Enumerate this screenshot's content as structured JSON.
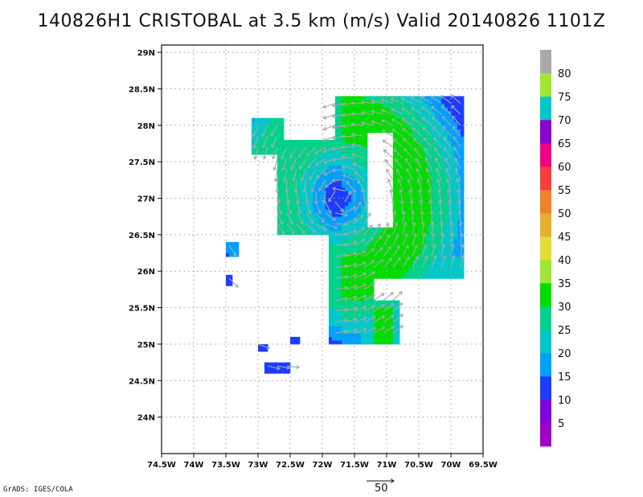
{
  "title": "140826H1 CRISTOBAL at 3.5 km (m/s) Valid 20140826 1101Z",
  "credit": "GrADS: IGES/COLA",
  "reference_vector": {
    "label": "50",
    "value": 50
  },
  "chart_data": {
    "type": "heatmap",
    "title": "140826H1 CRISTOBAL at 3.5 km (m/s) Valid 20140826 1101Z",
    "xlabel": "",
    "ylabel": "",
    "xlim": [
      -74.5,
      -69.5
    ],
    "ylim": [
      23.5,
      29.1
    ],
    "grid": true,
    "x_ticks": [
      {
        "value": -74.5,
        "label": "74.5W"
      },
      {
        "value": -74.0,
        "label": "74W"
      },
      {
        "value": -73.5,
        "label": "73.5W"
      },
      {
        "value": -73.0,
        "label": "73W"
      },
      {
        "value": -72.5,
        "label": "72.5W"
      },
      {
        "value": -72.0,
        "label": "72W"
      },
      {
        "value": -71.5,
        "label": "71.5W"
      },
      {
        "value": -71.0,
        "label": "71W"
      },
      {
        "value": -70.5,
        "label": "70.5W"
      },
      {
        "value": -70.0,
        "label": "70W"
      },
      {
        "value": -69.5,
        "label": "69.5W"
      }
    ],
    "y_ticks": [
      {
        "value": 24.0,
        "label": "24N"
      },
      {
        "value": 24.5,
        "label": "24.5N"
      },
      {
        "value": 25.0,
        "label": "25N"
      },
      {
        "value": 25.5,
        "label": "25.5N"
      },
      {
        "value": 26.0,
        "label": "26N"
      },
      {
        "value": 26.5,
        "label": "26.5N"
      },
      {
        "value": 27.0,
        "label": "27N"
      },
      {
        "value": 27.5,
        "label": "27.5N"
      },
      {
        "value": 28.0,
        "label": "28N"
      },
      {
        "value": 28.5,
        "label": "28.5N"
      },
      {
        "value": 29.0,
        "label": "29N"
      }
    ],
    "colorbar": {
      "labels": [
        "5",
        "10",
        "15",
        "20",
        "25",
        "30",
        "35",
        "40",
        "45",
        "50",
        "55",
        "60",
        "65",
        "70",
        "75",
        "80"
      ],
      "colors": [
        "#a000c8",
        "#8200dc",
        "#1e3cff",
        "#00a0ff",
        "#00c8c8",
        "#00d28c",
        "#00dc00",
        "#a0e632",
        "#e6dc32",
        "#e6af2d",
        "#f08228",
        "#fa3c3c",
        "#f00082",
        "#8c00d2",
        "#00c8c8",
        "#a0e632",
        "#aaaaaa"
      ],
      "bins": [
        {
          "min": 0,
          "max": 5,
          "color": "#a000c8"
        },
        {
          "min": 5,
          "max": 10,
          "color": "#8200dc"
        },
        {
          "min": 10,
          "max": 15,
          "color": "#1e3cff"
        },
        {
          "min": 15,
          "max": 20,
          "color": "#00a0ff"
        },
        {
          "min": 20,
          "max": 25,
          "color": "#00c8c8"
        },
        {
          "min": 25,
          "max": 30,
          "color": "#00d28c"
        },
        {
          "min": 30,
          "max": 35,
          "color": "#00dc00"
        },
        {
          "min": 35,
          "max": 40,
          "color": "#a0e632"
        },
        {
          "min": 40,
          "max": 45,
          "color": "#e6dc32"
        },
        {
          "min": 45,
          "max": 50,
          "color": "#e6af2d"
        },
        {
          "min": 50,
          "max": 55,
          "color": "#f08228"
        },
        {
          "min": 55,
          "max": 60,
          "color": "#fa3c3c"
        },
        {
          "min": 60,
          "max": 65,
          "color": "#f00082"
        },
        {
          "min": 65,
          "max": 70,
          "color": "#8c00d2"
        },
        {
          "min": 70,
          "max": 75,
          "color": "#00c8c8"
        },
        {
          "min": 75,
          "max": 80,
          "color": "#a0e632"
        },
        {
          "min": 80,
          "max": 85,
          "color": "#aaaaaa"
        }
      ]
    },
    "wind_field": {
      "center_lon": -71.7,
      "center_lat": 27.0,
      "valid_regions": [
        {
          "lon_min": -71.8,
          "lon_max": -69.8,
          "lat_min": 25.9,
          "lat_max": 28.4
        },
        {
          "lon_min": -72.7,
          "lon_max": -71.5,
          "lat_min": 26.5,
          "lat_max": 27.8
        },
        {
          "lon_min": -73.1,
          "lon_max": -72.6,
          "lat_min": 27.6,
          "lat_max": 28.1
        },
        {
          "lon_min": -71.9,
          "lon_max": -71.2,
          "lat_min": 25.0,
          "lat_max": 26.6
        },
        {
          "lon_min": -71.4,
          "lon_max": -70.8,
          "lat_min": 25.0,
          "lat_max": 25.6
        },
        {
          "lon_min": -73.5,
          "lon_max": -73.3,
          "lat_min": 26.2,
          "lat_max": 26.4
        },
        {
          "lon_min": -73.5,
          "lon_max": -73.4,
          "lat_min": 25.8,
          "lat_max": 25.95
        },
        {
          "lon_min": -72.9,
          "lon_max": -72.5,
          "lat_min": 24.6,
          "lat_max": 24.75
        },
        {
          "lon_min": -73.0,
          "lon_max": -72.85,
          "lat_min": 24.9,
          "lat_max": 25.0
        },
        {
          "lon_min": -72.5,
          "lon_max": -72.35,
          "lat_min": 25.0,
          "lat_max": 25.1
        }
      ],
      "eye_hole": {
        "lon_min": -71.3,
        "lon_max": -70.9,
        "lat_min": 26.6,
        "lat_max": 27.9
      },
      "value_model": {
        "peak_speed": 30,
        "rmax_deg": 1.1,
        "min_speed": 10
      }
    }
  }
}
